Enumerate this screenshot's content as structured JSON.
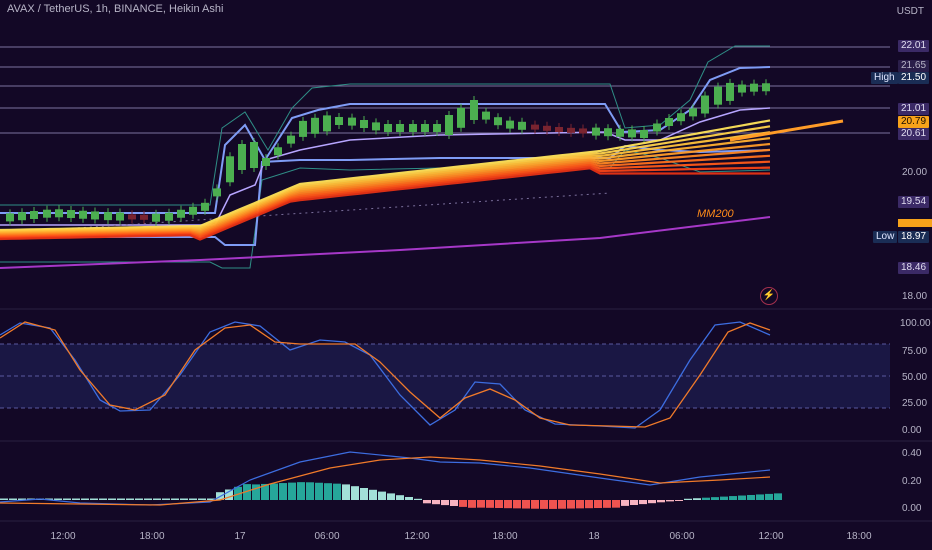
{
  "header": {
    "title": "AVAX / TetherUS, 1h, BINANCE, Heikin Ashi",
    "currency": "USDT"
  },
  "colors": {
    "background": "#130826",
    "bull_candle": "#4caf50",
    "bear_candle": "#7a2430",
    "stoch_k": "#3d6de0",
    "stoch_d": "#f07a2a",
    "ma200": "#a638c8",
    "band": "#7f9cf5",
    "hist_pos": "#26a69a",
    "hist_neg": "#ef5350"
  },
  "price_axis": {
    "ticks": [
      "18.00",
      "20.00"
    ],
    "tags": {
      "a": "22.01",
      "b": "21.65",
      "c": "21.50",
      "d": "21.01",
      "e": "20.79",
      "f": "20.61",
      "g": "19.54",
      "h": "18.97",
      "i": "18.46"
    },
    "high_label": "High",
    "low_label": "Low"
  },
  "stoch_axis": {
    "ticks": [
      "100.00",
      "75.00",
      "50.00",
      "25.00",
      "0.00"
    ]
  },
  "macd_axis": {
    "ticks": [
      "0.40",
      "0.20",
      "0.00"
    ]
  },
  "time_axis": {
    "labels": [
      "12:00",
      "18:00",
      "17",
      "06:00",
      "12:00",
      "18:00",
      "18",
      "06:00",
      "12:00",
      "18:00"
    ]
  },
  "annotations": {
    "ma200_label": "MM200"
  },
  "icons": {
    "alert": "lightning-icon"
  }
}
